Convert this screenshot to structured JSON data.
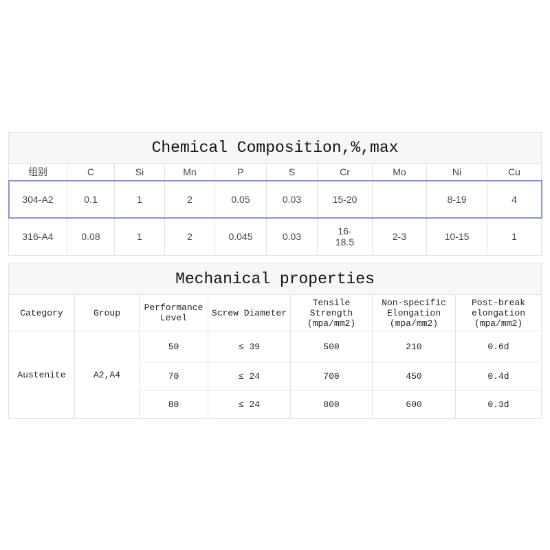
{
  "chemical": {
    "title": "Chemical Composition,%,max",
    "headers": [
      "组别",
      "C",
      "Si",
      "Mn",
      "P",
      "S",
      "Cr",
      "Mo",
      "Ni",
      "Cu"
    ],
    "rows": [
      [
        "304-A2",
        "0.1",
        "1",
        "2",
        "0.05",
        "0.03",
        "15-20",
        "",
        "8-19",
        "4"
      ],
      [
        "316-A4",
        "0.08",
        "1",
        "2",
        "0.045",
        "0.03",
        "16-\n18.5",
        "2-3",
        "10-15",
        "1"
      ]
    ]
  },
  "mechanical": {
    "title": "Mechanical properties",
    "headers": [
      "Category",
      "Group",
      "Performance Level",
      "Screw Diameter",
      "Tensile Strength (mpa/mm2)",
      "Non-specific Elongation (mpa/mm2)",
      "Post-break elongation (mpa/mm2)"
    ],
    "category": "Austenite",
    "group": "A2,A4",
    "rows": [
      [
        "50",
        "≤ 39",
        "500",
        "210",
        "0.6d"
      ],
      [
        "70",
        "≤ 24",
        "700",
        "450",
        "0.4d"
      ],
      [
        "80",
        "≤ 24",
        "800",
        "600",
        "0.3d"
      ]
    ]
  }
}
